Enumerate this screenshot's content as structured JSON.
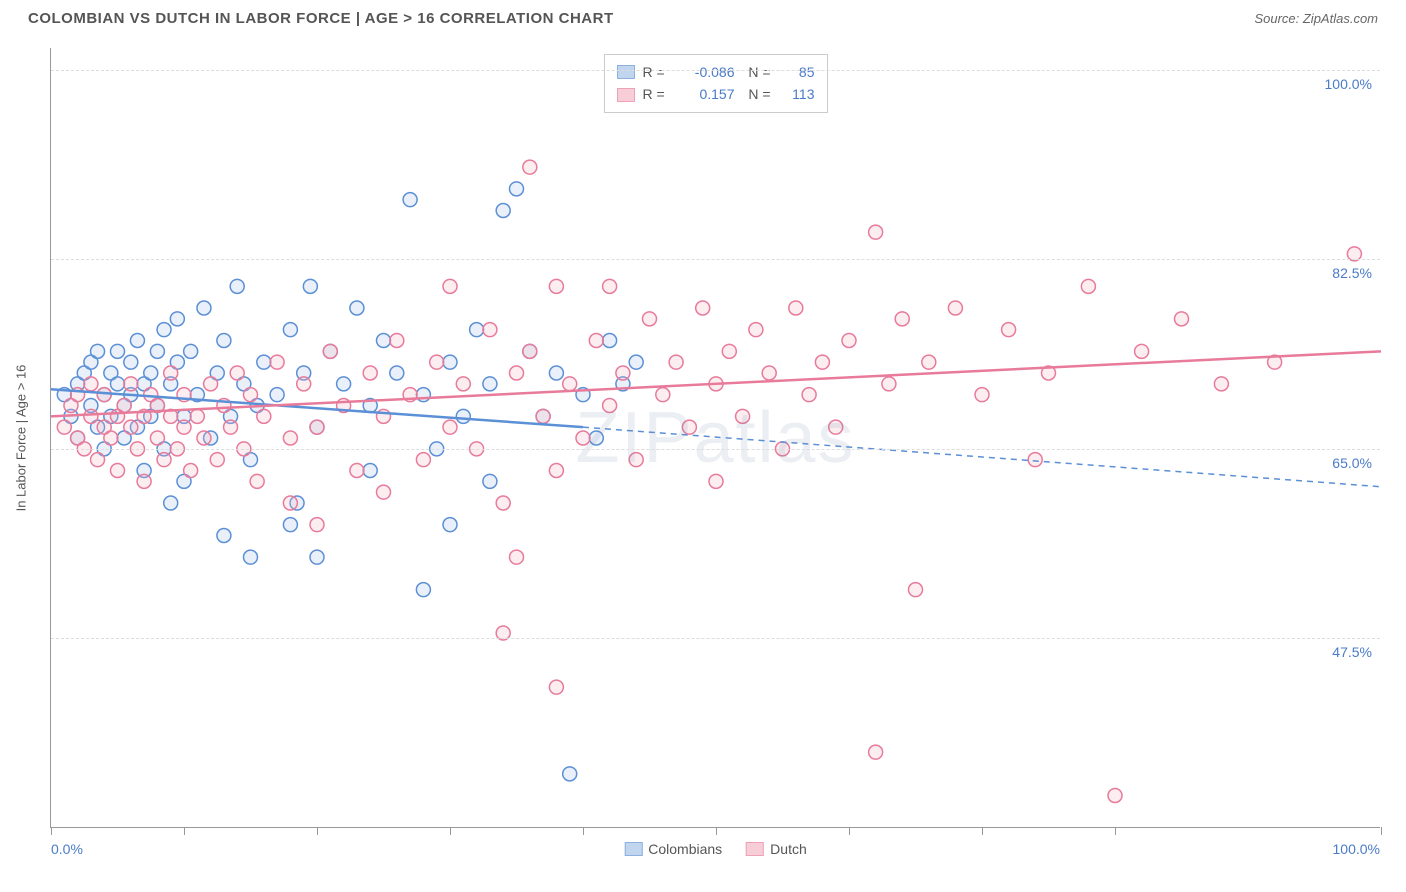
{
  "title": "COLOMBIAN VS DUTCH IN LABOR FORCE | AGE > 16 CORRELATION CHART",
  "source": "Source: ZipAtlas.com",
  "watermark": "ZIPatlas",
  "y_axis_title": "In Labor Force | Age > 16",
  "chart": {
    "type": "scatter",
    "xlim": [
      0,
      100
    ],
    "ylim": [
      30,
      102
    ],
    "x_ticks": [
      0,
      10,
      20,
      30,
      40,
      50,
      60,
      70,
      80,
      100
    ],
    "x_label_min": "0.0%",
    "x_label_max": "100.0%",
    "y_gridlines": [
      47.5,
      65.0,
      82.5,
      100.0
    ],
    "y_labels": [
      "47.5%",
      "65.0%",
      "82.5%",
      "100.0%"
    ],
    "background_color": "#ffffff",
    "grid_color": "#dddddd",
    "axis_color": "#999999",
    "tick_label_color": "#4a7bc8",
    "marker_radius": 7,
    "marker_stroke_width": 1.5,
    "marker_fill_opacity": 0.25,
    "trend_line_width": 2.5
  },
  "series": [
    {
      "name": "Colombians",
      "color_stroke": "#5b8fd6",
      "color_fill": "#a8c5e8",
      "R": "-0.086",
      "N": "85",
      "trend": {
        "x1": 0,
        "y1": 70.5,
        "x2": 40,
        "y2": 67.0,
        "dash_x2": 100,
        "dash_y2": 61.5
      },
      "points": [
        [
          1,
          70
        ],
        [
          1.5,
          68
        ],
        [
          2,
          71
        ],
        [
          2,
          66
        ],
        [
          2.5,
          72
        ],
        [
          3,
          69
        ],
        [
          3,
          73
        ],
        [
          3.5,
          67
        ],
        [
          3.5,
          74
        ],
        [
          4,
          70
        ],
        [
          4,
          65
        ],
        [
          4.5,
          72
        ],
        [
          4.5,
          68
        ],
        [
          5,
          71
        ],
        [
          5,
          74
        ],
        [
          5.5,
          69
        ],
        [
          5.5,
          66
        ],
        [
          6,
          73
        ],
        [
          6,
          70
        ],
        [
          6.5,
          67
        ],
        [
          6.5,
          75
        ],
        [
          7,
          71
        ],
        [
          7,
          63
        ],
        [
          7.5,
          72
        ],
        [
          7.5,
          68
        ],
        [
          8,
          74
        ],
        [
          8,
          69
        ],
        [
          8.5,
          76
        ],
        [
          8.5,
          65
        ],
        [
          9,
          71
        ],
        [
          9,
          60
        ],
        [
          9.5,
          73
        ],
        [
          9.5,
          77
        ],
        [
          10,
          68
        ],
        [
          10,
          62
        ],
        [
          10.5,
          74
        ],
        [
          11,
          70
        ],
        [
          11.5,
          78
        ],
        [
          12,
          66
        ],
        [
          12.5,
          72
        ],
        [
          13,
          75
        ],
        [
          13.5,
          68
        ],
        [
          14,
          80
        ],
        [
          14.5,
          71
        ],
        [
          15,
          64
        ],
        [
          15.5,
          69
        ],
        [
          16,
          73
        ],
        [
          13,
          57
        ],
        [
          17,
          70
        ],
        [
          18,
          76
        ],
        [
          18.5,
          60
        ],
        [
          19,
          72
        ],
        [
          19.5,
          80
        ],
        [
          20,
          67
        ],
        [
          21,
          74
        ],
        [
          22,
          71
        ],
        [
          23,
          78
        ],
        [
          20,
          55
        ],
        [
          24,
          69
        ],
        [
          25,
          75
        ],
        [
          26,
          72
        ],
        [
          27,
          88
        ],
        [
          28,
          70
        ],
        [
          29,
          65
        ],
        [
          30,
          73
        ],
        [
          31,
          68
        ],
        [
          32,
          76
        ],
        [
          33,
          71
        ],
        [
          34,
          87
        ],
        [
          35,
          89
        ],
        [
          33,
          62
        ],
        [
          36,
          74
        ],
        [
          37,
          68
        ],
        [
          38,
          72
        ],
        [
          39,
          35
        ],
        [
          40,
          70
        ],
        [
          41,
          66
        ],
        [
          42,
          75
        ],
        [
          43,
          71
        ],
        [
          44,
          73
        ],
        [
          28,
          52
        ],
        [
          30,
          58
        ],
        [
          24,
          63
        ],
        [
          18,
          58
        ],
        [
          15,
          55
        ]
      ]
    },
    {
      "name": "Dutch",
      "color_stroke": "#e87a9a",
      "color_fill": "#f5b8c8",
      "R": "0.157",
      "N": "113",
      "trend": {
        "x1": 0,
        "y1": 68.0,
        "x2": 100,
        "y2": 74.0
      },
      "points": [
        [
          1,
          67
        ],
        [
          1.5,
          69
        ],
        [
          2,
          66
        ],
        [
          2,
          70
        ],
        [
          2.5,
          65
        ],
        [
          3,
          68
        ],
        [
          3,
          71
        ],
        [
          3.5,
          64
        ],
        [
          4,
          67
        ],
        [
          4,
          70
        ],
        [
          4.5,
          66
        ],
        [
          5,
          68
        ],
        [
          5,
          63
        ],
        [
          5.5,
          69
        ],
        [
          6,
          67
        ],
        [
          6,
          71
        ],
        [
          6.5,
          65
        ],
        [
          7,
          68
        ],
        [
          7,
          62
        ],
        [
          7.5,
          70
        ],
        [
          8,
          66
        ],
        [
          8,
          69
        ],
        [
          8.5,
          64
        ],
        [
          9,
          68
        ],
        [
          9,
          72
        ],
        [
          9.5,
          65
        ],
        [
          10,
          67
        ],
        [
          10,
          70
        ],
        [
          10.5,
          63
        ],
        [
          11,
          68
        ],
        [
          11.5,
          66
        ],
        [
          12,
          71
        ],
        [
          12.5,
          64
        ],
        [
          13,
          69
        ],
        [
          13.5,
          67
        ],
        [
          14,
          72
        ],
        [
          14.5,
          65
        ],
        [
          15,
          70
        ],
        [
          15.5,
          62
        ],
        [
          16,
          68
        ],
        [
          17,
          73
        ],
        [
          18,
          66
        ],
        [
          18,
          60
        ],
        [
          19,
          71
        ],
        [
          20,
          67
        ],
        [
          20,
          58
        ],
        [
          21,
          74
        ],
        [
          22,
          69
        ],
        [
          23,
          63
        ],
        [
          24,
          72
        ],
        [
          25,
          68
        ],
        [
          25,
          61
        ],
        [
          26,
          75
        ],
        [
          27,
          70
        ],
        [
          28,
          64
        ],
        [
          29,
          73
        ],
        [
          30,
          67
        ],
        [
          30,
          80
        ],
        [
          31,
          71
        ],
        [
          32,
          65
        ],
        [
          33,
          76
        ],
        [
          34,
          60
        ],
        [
          35,
          72
        ],
        [
          35,
          55
        ],
        [
          36,
          74
        ],
        [
          36,
          91
        ],
        [
          37,
          68
        ],
        [
          38,
          63
        ],
        [
          38,
          80
        ],
        [
          39,
          71
        ],
        [
          40,
          66
        ],
        [
          41,
          75
        ],
        [
          42,
          69
        ],
        [
          42,
          80
        ],
        [
          43,
          72
        ],
        [
          44,
          64
        ],
        [
          45,
          77
        ],
        [
          46,
          70
        ],
        [
          47,
          73
        ],
        [
          48,
          67
        ],
        [
          49,
          78
        ],
        [
          50,
          71
        ],
        [
          50,
          62
        ],
        [
          51,
          74
        ],
        [
          52,
          68
        ],
        [
          53,
          76
        ],
        [
          54,
          72
        ],
        [
          55,
          65
        ],
        [
          56,
          78
        ],
        [
          57,
          70
        ],
        [
          58,
          73
        ],
        [
          59,
          67
        ],
        [
          60,
          75
        ],
        [
          62,
          85
        ],
        [
          63,
          71
        ],
        [
          64,
          77
        ],
        [
          65,
          52
        ],
        [
          66,
          73
        ],
        [
          68,
          78
        ],
        [
          70,
          70
        ],
        [
          72,
          76
        ],
        [
          74,
          64
        ],
        [
          75,
          72
        ],
        [
          62,
          37
        ],
        [
          78,
          80
        ],
        [
          80,
          33
        ],
        [
          82,
          74
        ],
        [
          85,
          77
        ],
        [
          88,
          71
        ],
        [
          92,
          73
        ],
        [
          98,
          83
        ],
        [
          38,
          43
        ],
        [
          34,
          48
        ]
      ]
    }
  ],
  "legend_bottom": [
    {
      "label": "Colombians",
      "fill": "#a8c5e8",
      "stroke": "#5b8fd6"
    },
    {
      "label": "Dutch",
      "fill": "#f5b8c8",
      "stroke": "#e87a9a"
    }
  ]
}
